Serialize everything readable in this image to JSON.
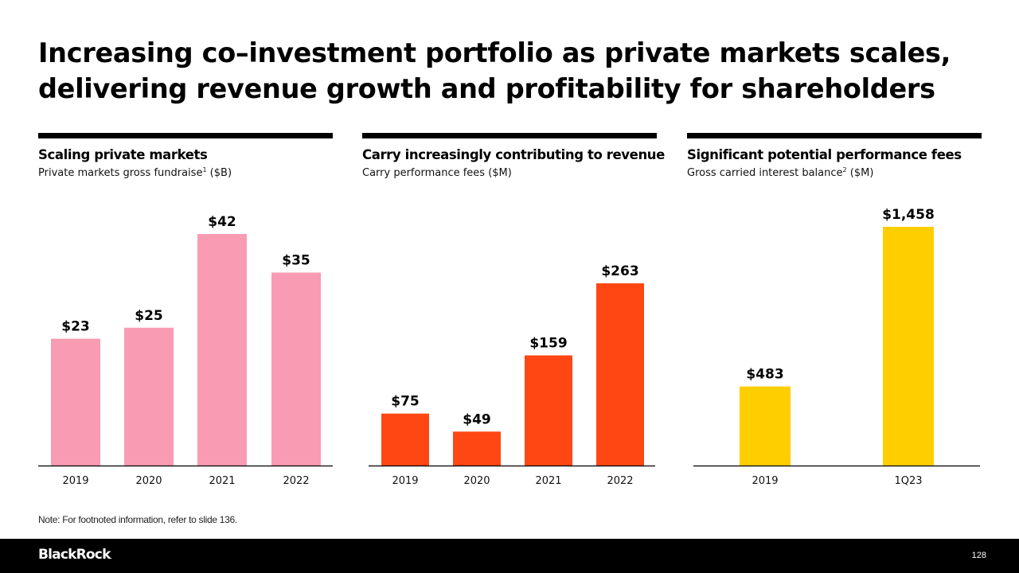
{
  "title": {
    "line1": "Increasing co–investment portfolio as private markets scales,",
    "line2": "delivering revenue growth and profitability for shareholders"
  },
  "panels": [
    {
      "title": "Scaling private markets",
      "subtitle_main": "Private markets gross fundraise",
      "subtitle_sup": "1",
      "subtitle_unit": " ($B)"
    },
    {
      "title": "Carry increasingly contributing to revenue",
      "subtitle_main": "Carry performance fees",
      "subtitle_sup": "",
      "subtitle_unit": " ($M)"
    },
    {
      "title": "Significant potential performance fees",
      "subtitle_main": "Gross carried interest balance",
      "subtitle_sup": "2",
      "subtitle_unit": " ($M)"
    }
  ],
  "note": "Note: For footnoted information, refer to slide 136.",
  "footer": {
    "logo": "BlackRock",
    "logo_mark": ".",
    "page_number": "128"
  },
  "colors": {
    "pink": "#F99BB3",
    "orange": "#FF4713",
    "yellow": "#FFCE00",
    "black": "#000000"
  },
  "chart_data": [
    {
      "type": "bar",
      "title": "Scaling private markets",
      "subtitle": "Private markets gross fundraise¹ ($B)",
      "categories": [
        "2019",
        "2020",
        "2021",
        "2022"
      ],
      "values": [
        23,
        25,
        42,
        35
      ],
      "data_labels": [
        "$23",
        "$25",
        "$42",
        "$35"
      ],
      "unit": "$B",
      "color": "#F99BB3",
      "xlabel": "",
      "ylabel": "",
      "ylim": [
        0,
        42
      ],
      "grid": false,
      "legend": "none"
    },
    {
      "type": "bar",
      "title": "Carry increasingly contributing to revenue",
      "subtitle": "Carry performance fees ($M)",
      "categories": [
        "2019",
        "2020",
        "2021",
        "2022"
      ],
      "values": [
        75,
        49,
        159,
        263
      ],
      "data_labels": [
        "$75",
        "$49",
        "$159",
        "$263"
      ],
      "unit": "$M",
      "color": "#FF4713",
      "xlabel": "",
      "ylabel": "",
      "ylim": [
        0,
        263
      ],
      "grid": false,
      "legend": "none"
    },
    {
      "type": "bar",
      "title": "Significant potential performance fees",
      "subtitle": "Gross carried interest balance² ($M)",
      "categories": [
        "2019",
        "1Q23"
      ],
      "values": [
        483,
        1458
      ],
      "data_labels": [
        "$483",
        "$1,458"
      ],
      "unit": "$M",
      "color": "#FFCE00",
      "xlabel": "",
      "ylabel": "",
      "ylim": [
        0,
        1458
      ],
      "grid": false,
      "legend": "none"
    }
  ]
}
